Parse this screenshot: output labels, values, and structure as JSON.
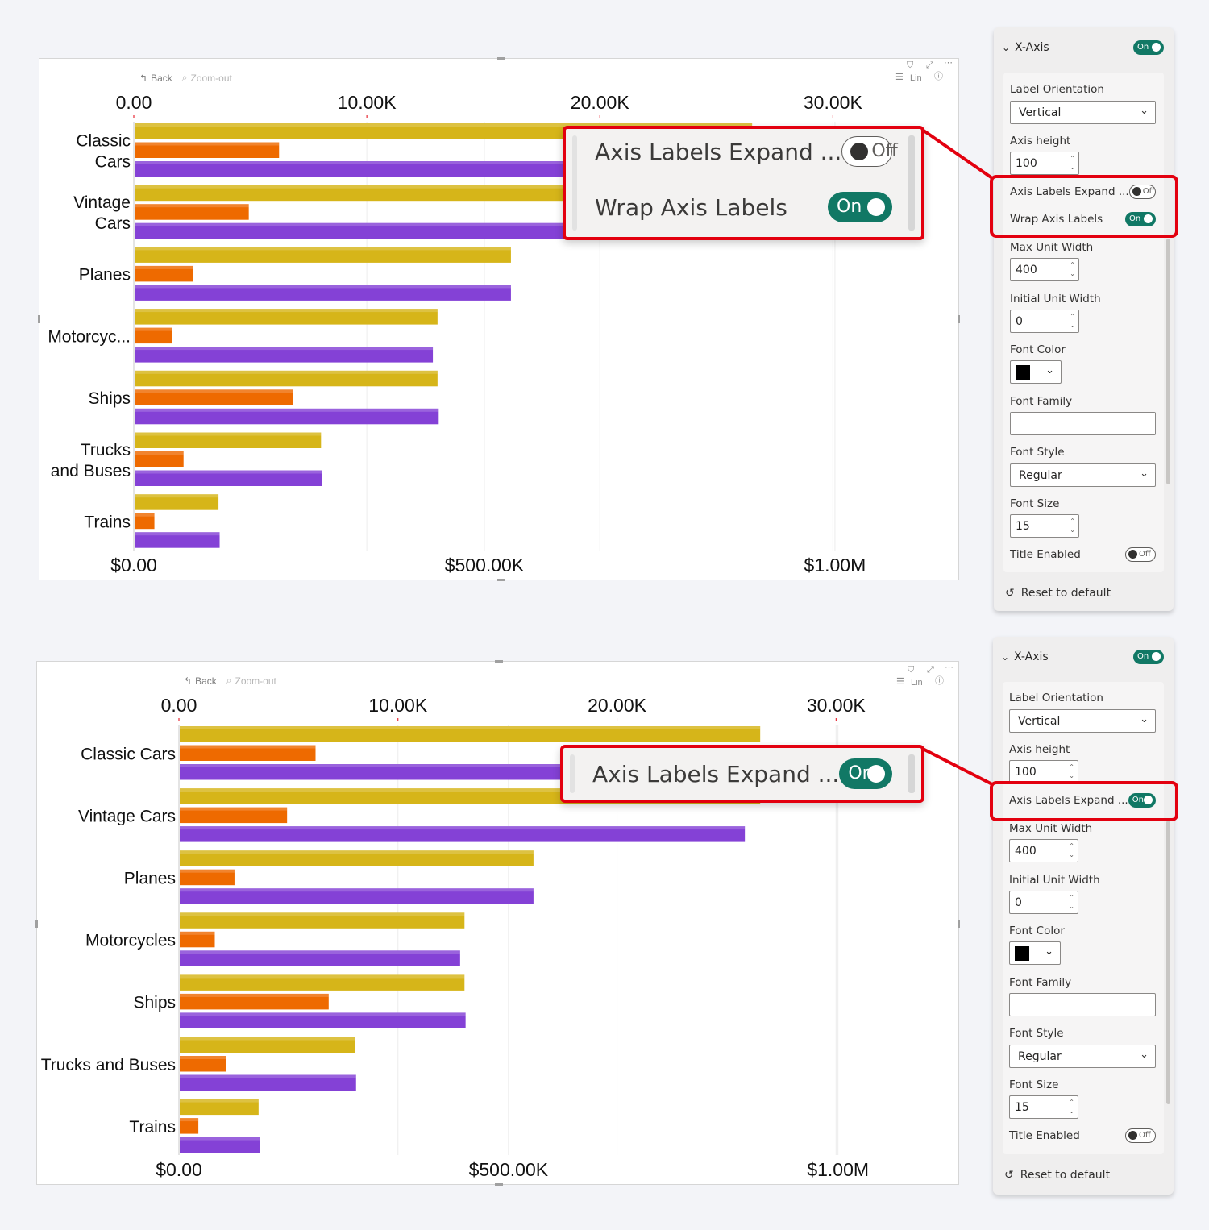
{
  "colors": {
    "gold": "#d6b519",
    "orange": "#ee6a00",
    "purple": "#8441d6",
    "toggle_on": "#117865",
    "highlight": "#e3000f"
  },
  "charts": [
    {
      "toolbar": {
        "back": "Back",
        "zoom_out": "Zoom-out",
        "lin": "Lin"
      },
      "top_axis_ticks": [
        "0.00",
        "10.00K",
        "20.00K",
        "30.00K"
      ],
      "bottom_axis_ticks": [
        "$0.00",
        "$500.00K",
        "$1.00M"
      ],
      "category_lines": [
        [
          "Classic",
          "Cars"
        ],
        [
          "Vintage",
          "Cars"
        ],
        [
          "Planes"
        ],
        [
          "Motorcyc..."
        ],
        [
          "Ships"
        ],
        [
          "Trucks",
          "and Buses"
        ],
        [
          "Trains"
        ]
      ]
    },
    {
      "toolbar": {
        "back": "Back",
        "zoom_out": "Zoom-out",
        "lin": "Lin"
      },
      "top_axis_ticks": [
        "0.00",
        "10.00K",
        "20.00K",
        "30.00K"
      ],
      "bottom_axis_ticks": [
        "$0.00",
        "$500.00K",
        "$1.00M"
      ],
      "category_lines": [
        [
          "Classic Cars"
        ],
        [
          "Vintage Cars"
        ],
        [
          "Planes"
        ],
        [
          "Motorcycles"
        ],
        [
          "Ships"
        ],
        [
          "Trucks and Buses"
        ],
        [
          "Trains"
        ]
      ]
    }
  ],
  "chart_data": {
    "type": "bar",
    "orientation": "horizontal",
    "categories": [
      "Classic Cars",
      "Vintage Cars",
      "Planes",
      "Motorcycles",
      "Ships",
      "Trucks and Buses",
      "Trains"
    ],
    "top_axis_range": [
      0,
      34000
    ],
    "bottom_axis_range": [
      0,
      1130000
    ],
    "series": [
      {
        "values": [
          26500,
          26500,
          16150,
          13000,
          13000,
          8000,
          3600
        ]
      },
      {
        "values": [
          6200,
          4900,
          2500,
          1600,
          6800,
          2100,
          850
        ]
      },
      {
        "values": [
          26500,
          25800,
          16150,
          12800,
          13050,
          8050,
          3650
        ]
      }
    ]
  },
  "panels": [
    {
      "header": "X-Axis",
      "header_toggle": "On",
      "label_orientation": "Label Orientation",
      "label_orientation_value": "Vertical",
      "axis_height": "Axis height",
      "axis_height_value": "100",
      "expand_label": "Axis Labels Expand ...",
      "expand_toggle": "Off",
      "wrap_label": "Wrap Axis Labels",
      "wrap_toggle": "On",
      "max_unit_width": "Max Unit Width",
      "max_unit_width_value": "400",
      "initial_unit_width": "Initial Unit Width",
      "initial_unit_width_value": "0",
      "font_color": "Font Color",
      "font_color_value": "#000000",
      "font_family": "Font Family",
      "font_style": "Font Style",
      "font_style_value": "Regular",
      "font_size": "Font Size",
      "font_size_value": "15",
      "title_enabled": "Title Enabled",
      "title_toggle": "Off",
      "reset": "Reset to default"
    },
    {
      "header": "X-Axis",
      "header_toggle": "On",
      "label_orientation": "Label Orientation",
      "label_orientation_value": "Vertical",
      "axis_height": "Axis height",
      "axis_height_value": "100",
      "expand_label": "Axis Labels Expand ...",
      "expand_toggle": "On",
      "max_unit_width": "Max Unit Width",
      "max_unit_width_value": "400",
      "initial_unit_width": "Initial Unit Width",
      "initial_unit_width_value": "0",
      "font_color": "Font Color",
      "font_color_value": "#000000",
      "font_family": "Font Family",
      "font_style": "Font Style",
      "font_style_value": "Regular",
      "font_size": "Font Size",
      "font_size_value": "15",
      "title_enabled": "Title Enabled",
      "title_toggle": "Off",
      "reset": "Reset to default"
    }
  ],
  "callouts": [
    {
      "expand_label": "Axis Labels Expand ...",
      "expand_toggle": "Off",
      "wrap_label": "Wrap Axis Labels",
      "wrap_toggle": "On"
    },
    {
      "expand_label": "Axis Labels Expand ...",
      "expand_toggle": "On"
    }
  ]
}
